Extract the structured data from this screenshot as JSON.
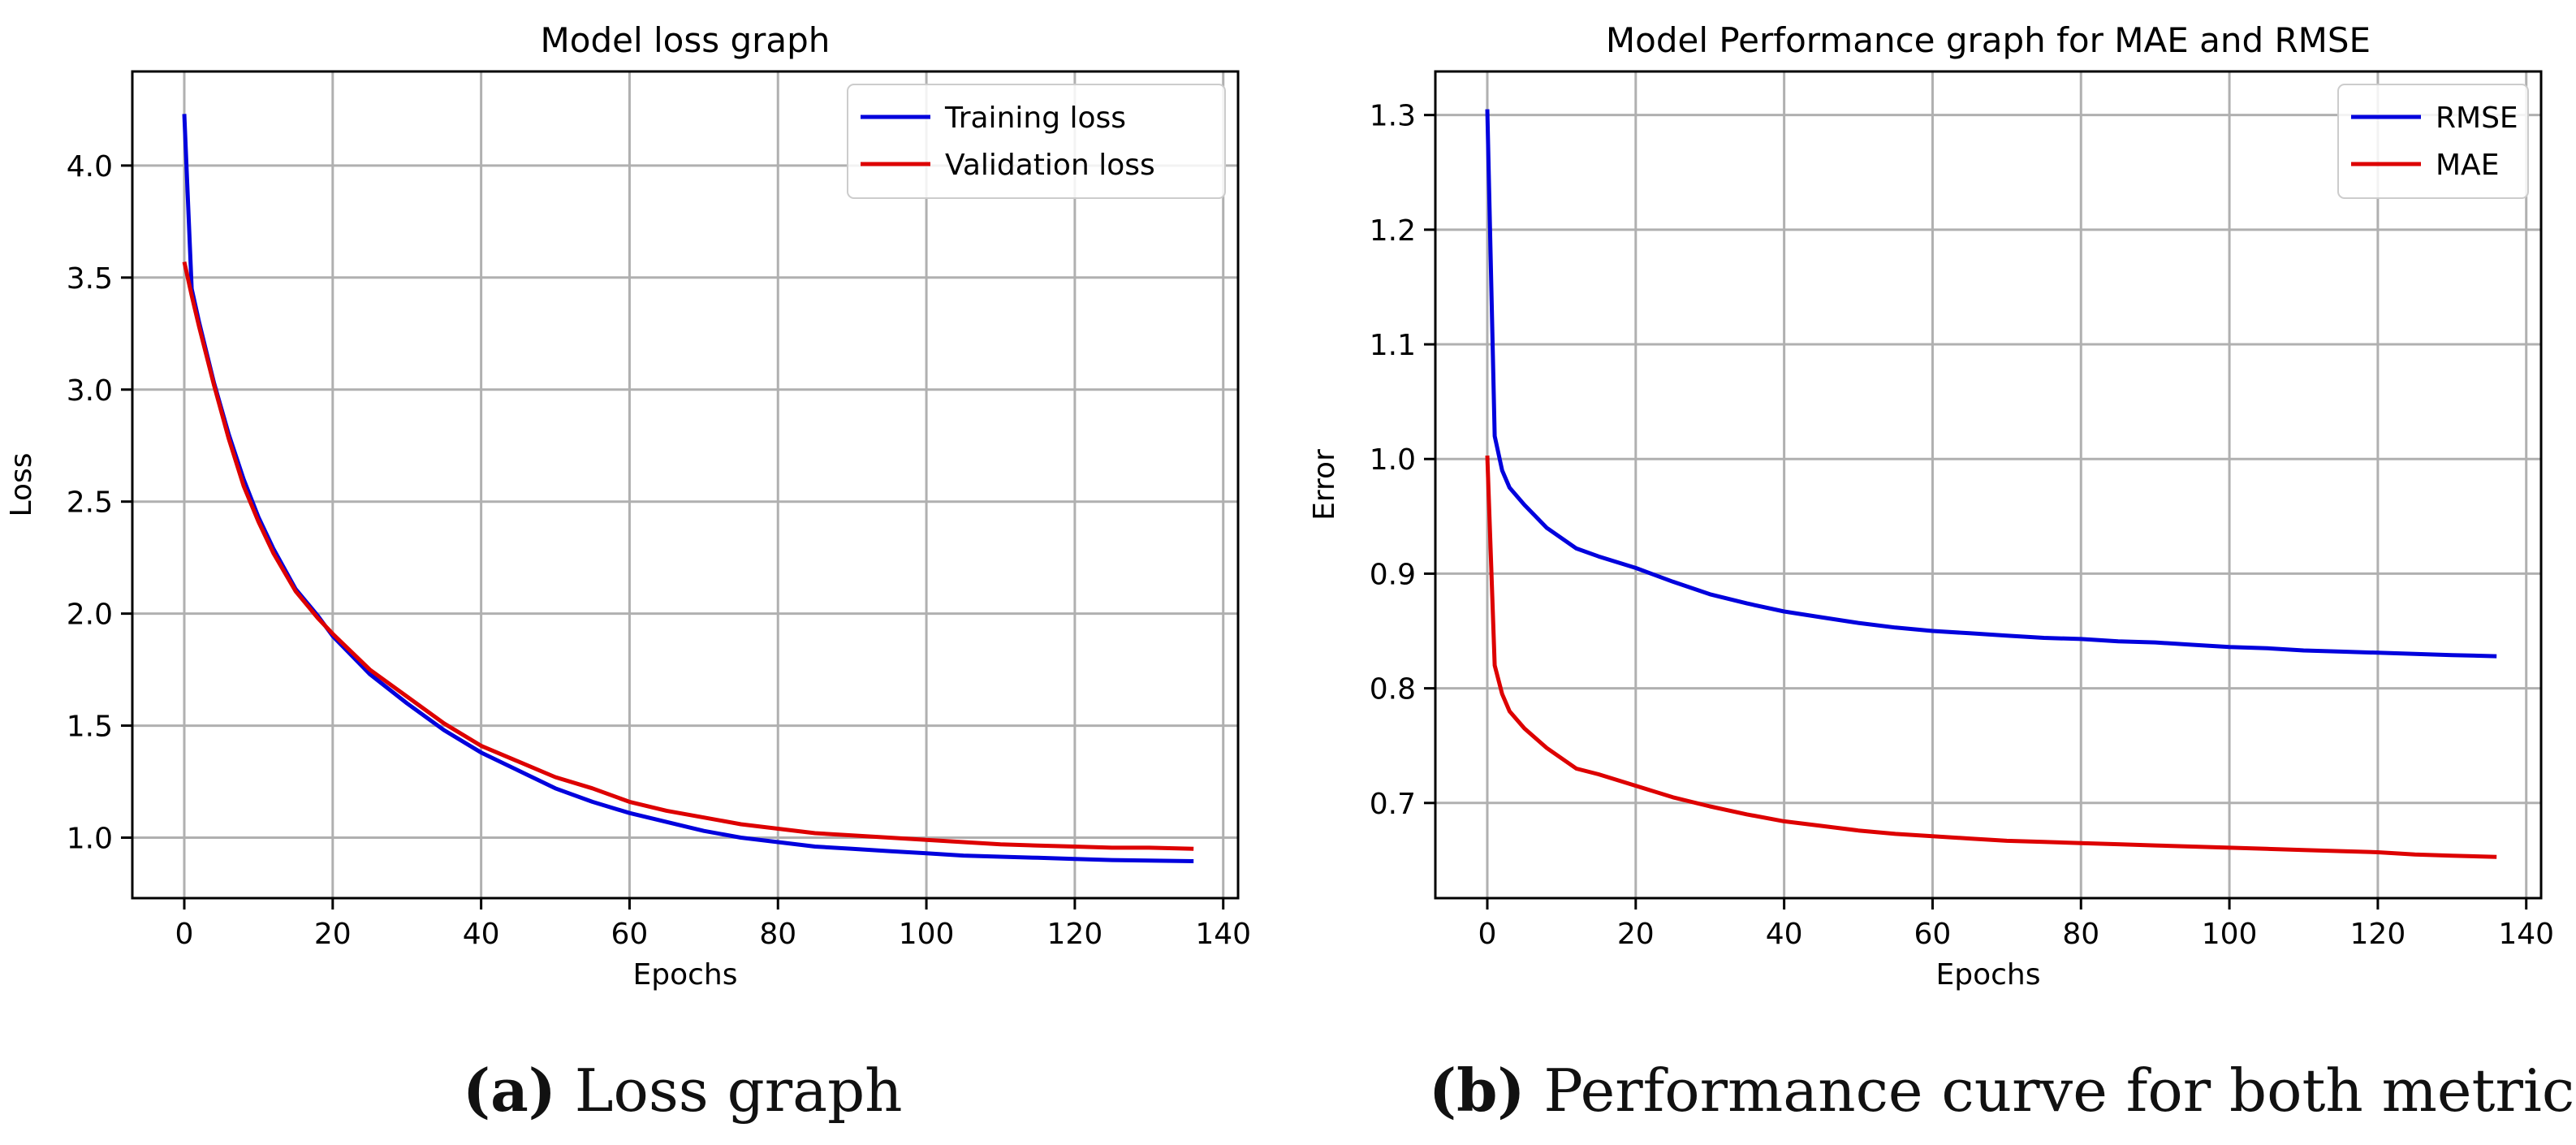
{
  "chart_data": [
    {
      "type": "line",
      "title": "Model loss graph",
      "xlabel": "Epochs",
      "ylabel": "Loss",
      "xlim": [
        -7,
        142
      ],
      "ylim": [
        0.73,
        4.42
      ],
      "xticks": [
        0,
        20,
        40,
        60,
        80,
        100,
        120,
        140
      ],
      "yticks": [
        1.0,
        1.5,
        2.0,
        2.5,
        3.0,
        3.5,
        4.0
      ],
      "ytick_labels": [
        "1.0",
        "1.5",
        "2.0",
        "2.5",
        "3.0",
        "3.5",
        "4.0"
      ],
      "grid": true,
      "legend": "top-right",
      "series": [
        {
          "name": "Training loss",
          "color": "#0000dd",
          "x": [
            0,
            1,
            2,
            4,
            6,
            8,
            10,
            12,
            15,
            18,
            20,
            25,
            30,
            35,
            40,
            45,
            50,
            55,
            60,
            65,
            70,
            75,
            80,
            85,
            90,
            95,
            100,
            105,
            110,
            115,
            120,
            125,
            130,
            136
          ],
          "y": [
            4.23,
            3.45,
            3.3,
            3.03,
            2.8,
            2.6,
            2.43,
            2.29,
            2.11,
            1.99,
            1.9,
            1.73,
            1.6,
            1.48,
            1.38,
            1.3,
            1.22,
            1.16,
            1.11,
            1.07,
            1.03,
            1.0,
            0.98,
            0.96,
            0.95,
            0.94,
            0.93,
            0.92,
            0.915,
            0.91,
            0.905,
            0.9,
            0.898,
            0.895
          ]
        },
        {
          "name": "Validation loss",
          "color": "#dd0000",
          "x": [
            0,
            1,
            2,
            4,
            6,
            8,
            10,
            12,
            15,
            18,
            20,
            25,
            30,
            35,
            40,
            45,
            50,
            55,
            60,
            65,
            70,
            75,
            80,
            85,
            90,
            95,
            100,
            105,
            110,
            115,
            120,
            125,
            130,
            136
          ],
          "y": [
            3.57,
            3.42,
            3.28,
            3.02,
            2.78,
            2.57,
            2.41,
            2.27,
            2.1,
            1.98,
            1.91,
            1.75,
            1.63,
            1.51,
            1.41,
            1.34,
            1.27,
            1.22,
            1.16,
            1.12,
            1.09,
            1.06,
            1.04,
            1.02,
            1.01,
            1.0,
            0.99,
            0.98,
            0.97,
            0.965,
            0.96,
            0.955,
            0.955,
            0.95
          ]
        }
      ],
      "caption_letter": "(a)",
      "caption_text": "Loss graph"
    },
    {
      "type": "line",
      "title": "Model Performance graph for MAE and RMSE",
      "xlabel": "Epochs",
      "ylabel": "Error",
      "xlim": [
        -7,
        142
      ],
      "ylim": [
        0.617,
        1.338
      ],
      "xticks": [
        0,
        20,
        40,
        60,
        80,
        100,
        120,
        140
      ],
      "yticks": [
        0.7,
        0.8,
        0.9,
        1.0,
        1.1,
        1.2,
        1.3
      ],
      "ytick_labels": [
        "0.7",
        "0.8",
        "0.9",
        "1.0",
        "1.1",
        "1.2",
        "1.3"
      ],
      "grid": true,
      "legend": "top-right",
      "series": [
        {
          "name": "RMSE",
          "color": "#0000dd",
          "x": [
            0,
            1,
            2,
            3,
            5,
            8,
            12,
            15,
            20,
            25,
            30,
            35,
            40,
            45,
            50,
            55,
            60,
            65,
            70,
            75,
            80,
            85,
            90,
            95,
            100,
            105,
            110,
            115,
            120,
            125,
            130,
            136
          ],
          "y": [
            1.305,
            1.02,
            0.99,
            0.975,
            0.96,
            0.94,
            0.922,
            0.915,
            0.905,
            0.893,
            0.882,
            0.874,
            0.867,
            0.862,
            0.857,
            0.853,
            0.85,
            0.848,
            0.846,
            0.844,
            0.843,
            0.841,
            0.84,
            0.838,
            0.836,
            0.835,
            0.833,
            0.832,
            0.831,
            0.83,
            0.829,
            0.828
          ]
        },
        {
          "name": "MAE",
          "color": "#dd0000",
          "x": [
            0,
            1,
            2,
            3,
            5,
            8,
            12,
            15,
            20,
            25,
            30,
            35,
            40,
            45,
            50,
            55,
            60,
            65,
            70,
            75,
            80,
            85,
            90,
            95,
            100,
            105,
            110,
            115,
            120,
            125,
            130,
            136
          ],
          "y": [
            1.003,
            0.82,
            0.795,
            0.78,
            0.765,
            0.748,
            0.73,
            0.725,
            0.715,
            0.705,
            0.697,
            0.69,
            0.684,
            0.68,
            0.676,
            0.673,
            0.671,
            0.669,
            0.667,
            0.666,
            0.665,
            0.664,
            0.663,
            0.662,
            0.661,
            0.66,
            0.659,
            0.658,
            0.657,
            0.655,
            0.654,
            0.653
          ]
        }
      ],
      "caption_letter": "(b)",
      "caption_text": "Performance curve for both metrics"
    }
  ]
}
